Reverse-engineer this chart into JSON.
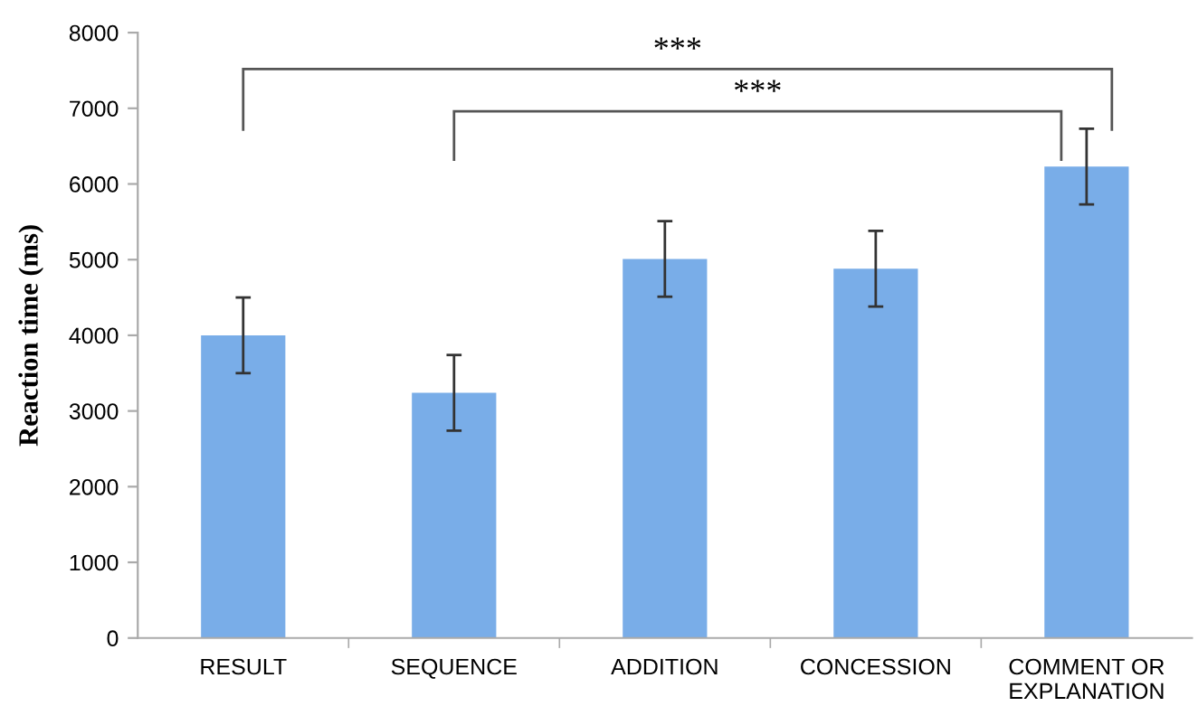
{
  "chart_data": {
    "type": "bar",
    "ylabel": "Reaction time (ms)",
    "categories": [
      "RESULT",
      "SEQUENCE",
      "ADDITION",
      "CONCESSION",
      "COMMENT OR\nEXPLANATION"
    ],
    "values": [
      4000,
      3240,
      5010,
      4880,
      6230
    ],
    "errors": [
      500,
      500,
      500,
      500,
      500
    ],
    "color": "#79ade8",
    "ylim": [
      0,
      8000
    ],
    "yticks": [
      0,
      1000,
      2000,
      3000,
      4000,
      5000,
      6000,
      7000,
      8000
    ],
    "grid": false,
    "annotations": [
      "***",
      "***"
    ]
  }
}
